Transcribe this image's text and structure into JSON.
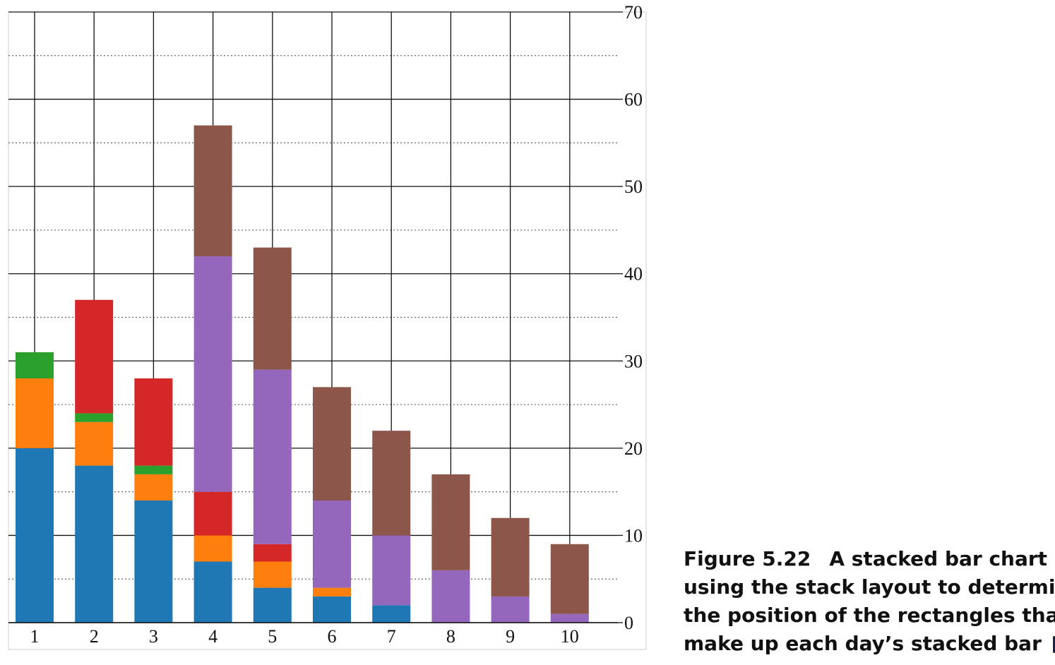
{
  "chart_data": {
    "type": "bar",
    "stacked": true,
    "categories": [
      "1",
      "2",
      "3",
      "4",
      "5",
      "6",
      "7",
      "8",
      "9",
      "10"
    ],
    "series": [
      {
        "color": "#1f77b4",
        "values": [
          20,
          18,
          14,
          7,
          4,
          3,
          2,
          0,
          0,
          0
        ]
      },
      {
        "color": "#ff7f0e",
        "values": [
          8,
          5,
          3,
          3,
          3,
          1,
          0,
          0,
          0,
          0
        ]
      },
      {
        "color": "#2ca02c",
        "values": [
          3,
          1,
          1,
          0,
          0,
          0,
          0,
          0,
          0,
          0
        ]
      },
      {
        "color": "#d62728",
        "values": [
          0,
          13,
          10,
          5,
          2,
          0,
          0,
          0,
          0,
          0
        ]
      },
      {
        "color": "#9467bd",
        "values": [
          0,
          0,
          0,
          27,
          20,
          10,
          8,
          6,
          3,
          1
        ]
      },
      {
        "color": "#8c564b",
        "values": [
          0,
          0,
          0,
          15,
          14,
          13,
          12,
          11,
          9,
          8
        ]
      }
    ],
    "ylim": [
      0,
      70
    ],
    "yticks": [
      "0",
      "10",
      "20",
      "30",
      "40",
      "50",
      "60",
      "70"
    ],
    "grid": true,
    "yaxis_position": "right"
  },
  "caption": {
    "figure_label": "Figure 5.22",
    "lines": [
      "A stacked bar chart",
      "using the stack layout to determine",
      "the position of the rectangles that",
      "make up each day’s stacked bar"
    ],
    "icon": "zoom-icon"
  }
}
